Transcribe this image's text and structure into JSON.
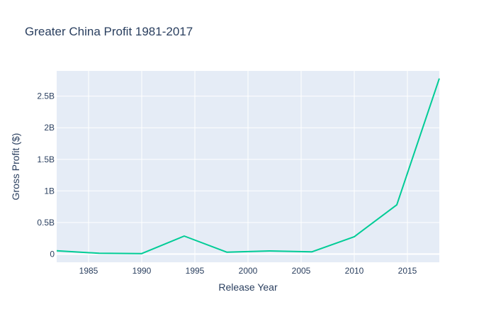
{
  "chart_data": {
    "type": "line",
    "title": "Greater China Profit 1981-2017",
    "xlabel": "Release Year",
    "ylabel": "Gross Profit ($)",
    "xlim": [
      1982,
      2018
    ],
    "ylim": [
      -0.13,
      2.9
    ],
    "x_ticks": [
      1985,
      1990,
      1995,
      2000,
      2005,
      2010,
      2015
    ],
    "x_tick_labels": [
      "1985",
      "1990",
      "1995",
      "2000",
      "2005",
      "2010",
      "2015"
    ],
    "y_ticks": [
      0,
      0.5,
      1,
      1.5,
      2,
      2.5
    ],
    "y_tick_labels": [
      "0",
      "0.5B",
      "1B",
      "1.5B",
      "2B",
      "2.5B"
    ],
    "y_unit": "billions of dollars",
    "grid": true,
    "legend": "none",
    "series": [
      {
        "x": [
          1982,
          1986,
          1990,
          1994,
          1998,
          2002,
          2006,
          2010,
          2014,
          2018
        ],
        "y": [
          0.053,
          0.012,
          0.008,
          0.285,
          0.03,
          0.05,
          0.035,
          0.275,
          0.78,
          2.78
        ],
        "color": "#00cc96"
      }
    ],
    "colors": {
      "plot_bg": "#e5ecf6",
      "grid": "#ffffff",
      "text": "#2a3f5f",
      "line": "#00cc96"
    }
  }
}
